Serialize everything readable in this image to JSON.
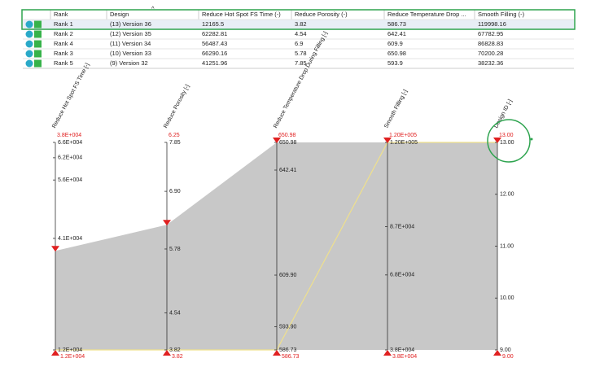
{
  "table": {
    "columns": [
      "Rank",
      "Design",
      "Reduce Hot Spot FS Time (-)",
      "Reduce Porosity (-)",
      "Reduce Temperature Drop ...",
      "Smooth Filling (-)"
    ],
    "rows": [
      [
        "Rank 1",
        "(13) Version 36",
        "12165.5",
        "3.82",
        "586.73",
        "119998.16"
      ],
      [
        "Rank 2",
        "(12) Version 35",
        "62282.81",
        "4.54",
        "642.41",
        "67782.95"
      ],
      [
        "Rank 4",
        "(11) Version 34",
        "56487.43",
        "6.9",
        "609.9",
        "86828.83"
      ],
      [
        "Rank 3",
        "(10) Version 33",
        "66290.16",
        "5.78",
        "650.98",
        "70200.28"
      ],
      [
        "Rank 5",
        "(9) Version 32",
        "41251.96",
        "7.85",
        "593.9",
        "38232.36"
      ]
    ]
  },
  "plot": {
    "axes": [
      {
        "label": "Reduce Hot Spot FS Time [-]",
        "lim": [
          12165.5,
          66290.16
        ],
        "ticks": [
          {
            "value": 66290.16,
            "label": "6.6E+004"
          },
          {
            "value": 62282.81,
            "label": "6.2E+004"
          },
          {
            "value": 56487.43,
            "label": "5.6E+004"
          },
          {
            "value": 41251.96,
            "label": "4.1E+004"
          },
          {
            "value": 12165.5,
            "label": "1.2E+004"
          }
        ],
        "filter_top": {
          "value": 38000,
          "label": "3.8E+004"
        },
        "filter_bottom": {
          "value": 12165.5,
          "label": "1.2E+004"
        }
      },
      {
        "label": "Reduce Porosity [-]",
        "lim": [
          3.82,
          7.85
        ],
        "ticks": [
          7.85,
          {
            "value": 6.9,
            "label": "6.90"
          },
          5.78,
          4.54,
          3.82
        ],
        "filter_top": 6.25,
        "filter_bottom": 3.82
      },
      {
        "label": "Reduce Temperature Drop During Filling [-]",
        "lim": [
          586.73,
          650.98
        ],
        "ticks": [
          650.98,
          642.41,
          {
            "value": 609.9,
            "label": "609.90"
          },
          {
            "value": 593.9,
            "label": "593.90"
          },
          586.73
        ],
        "filter_top": 650.98,
        "filter_bottom": 586.73
      },
      {
        "label": "Smooth Filling [-]",
        "lim": [
          38232.36,
          119998.16
        ],
        "ticks": [
          {
            "value": 119998.16,
            "label": "1.20E+005"
          },
          {
            "value": 86828.83,
            "label": "8.7E+004"
          },
          {
            "value": 67782.95,
            "label": "6.8E+004"
          },
          {
            "value": 38232.36,
            "label": "3.8E+004"
          }
        ],
        "filter_top": {
          "value": 119998.16,
          "label": "1.20E+005"
        },
        "filter_bottom": {
          "value": 38232.36,
          "label": "3.8E+004"
        }
      },
      {
        "label": "Design ID [-]",
        "lim": [
          9,
          13
        ],
        "ticks": [
          {
            "value": 13,
            "label": "13.00"
          },
          {
            "value": 12,
            "label": "12.00"
          },
          {
            "value": 11,
            "label": "11.00"
          },
          {
            "value": 10,
            "label": "10.00"
          },
          {
            "value": 9,
            "label": "9.00"
          }
        ],
        "filter_top": {
          "value": 13,
          "label": "13.00"
        },
        "filter_bottom": {
          "value": 9,
          "label": "9.00"
        }
      }
    ],
    "selected": {
      "color": "#efe08c",
      "values": [
        12165.5,
        3.82,
        586.73,
        119998.16,
        13
      ]
    }
  }
}
